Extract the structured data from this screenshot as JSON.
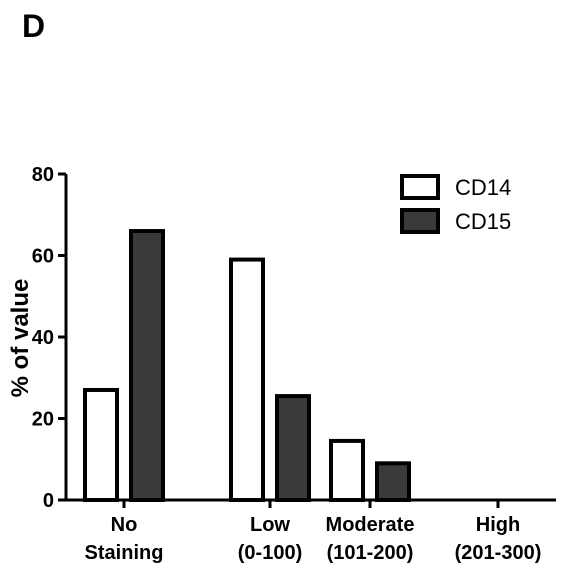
{
  "panel_label": "D",
  "chart_data": {
    "type": "bar",
    "categories": [
      [
        "No",
        "Staining"
      ],
      [
        "Low",
        "(0-100)"
      ],
      [
        "Moderate",
        "(101-200)"
      ],
      [
        "High",
        "(201-300)"
      ]
    ],
    "series": [
      {
        "name": "CD14",
        "values": [
          27,
          59,
          14.5,
          0
        ],
        "color": "#ffffff"
      },
      {
        "name": "CD15",
        "values": [
          66,
          25.5,
          9,
          0
        ],
        "color": "#3a3a3a"
      }
    ],
    "title": "",
    "xlabel": "",
    "ylabel": "% of value",
    "ylim": [
      0,
      80
    ],
    "yticks": [
      0,
      20,
      40,
      60,
      80
    ],
    "legend_position": "top-right",
    "grid": false
  }
}
